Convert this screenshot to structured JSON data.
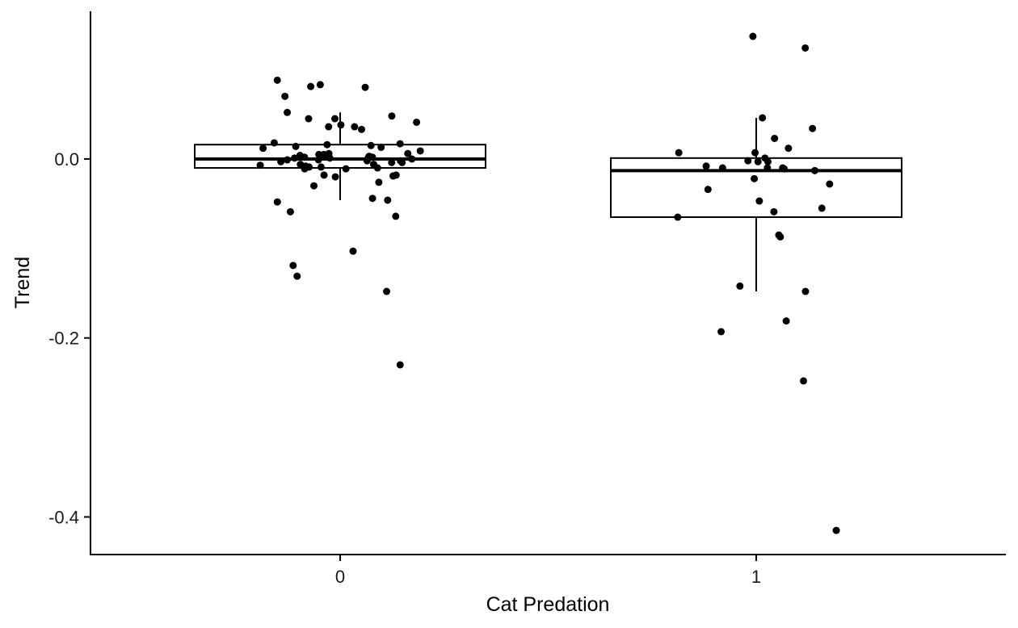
{
  "chart_data": {
    "type": "boxplot",
    "xlabel": "Cat Predation",
    "ylabel": "Trend",
    "categories": [
      "0",
      "1"
    ],
    "y_ticks": [
      {
        "value": 0.0,
        "label": "0.0"
      },
      {
        "value": -0.2,
        "label": "-0.2"
      },
      {
        "value": -0.4,
        "label": "-0.4"
      }
    ],
    "ylim": [
      -0.442,
      0.165
    ],
    "grid": false,
    "legend": "none",
    "boxes": [
      {
        "category": "0",
        "q1": -0.01,
        "median": 0.0,
        "q3": 0.016,
        "whisker_low": -0.046,
        "whisker_high": 0.052
      },
      {
        "category": "1",
        "q1": -0.065,
        "median": -0.013,
        "q3": 0.001,
        "whisker_low": -0.148,
        "whisker_high": 0.046
      }
    ],
    "points": [
      {
        "category": "0",
        "values": [
          0.08,
          0.045,
          0.033,
          0.009,
          0.003,
          0.001,
          -0.001,
          -0.004,
          -0.006,
          -0.019,
          -0.026,
          -0.03,
          -0.046,
          -0.059,
          -0.103,
          -0.131,
          -0.119,
          -0.148,
          -0.23,
          -0.064,
          -0.048,
          -0.02,
          -0.01,
          -0.001,
          0.002,
          0.005,
          0.006,
          0.017,
          0.016,
          0.036,
          0.048,
          0.052,
          0.07,
          0.081,
          0.083,
          0.038,
          0.041,
          0.045,
          0.013,
          0.014,
          0.001,
          -0.002,
          -0.004,
          -0.009,
          -0.011,
          -0.018,
          -0.044,
          0.088,
          0.036,
          0.018,
          0.015,
          0.005,
          0.002,
          -0.006,
          -0.009,
          -0.018,
          0.003,
          0.0,
          0.006,
          0.012,
          0.004,
          -0.003,
          -0.002,
          -0.007,
          -0.008,
          -0.011,
          0.004,
          0.001
        ]
      },
      {
        "category": "1",
        "values": [
          0.124,
          0.137,
          0.046,
          0.034,
          0.023,
          0.012,
          0.007,
          0.001,
          -0.002,
          -0.003,
          -0.01,
          -0.01,
          -0.022,
          -0.028,
          -0.034,
          -0.047,
          -0.055,
          -0.059,
          -0.065,
          -0.085,
          -0.087,
          -0.142,
          -0.148,
          -0.181,
          -0.193,
          -0.248,
          -0.415,
          0.007,
          -0.008,
          -0.01,
          -0.011,
          -0.013,
          -0.003
        ]
      }
    ]
  }
}
